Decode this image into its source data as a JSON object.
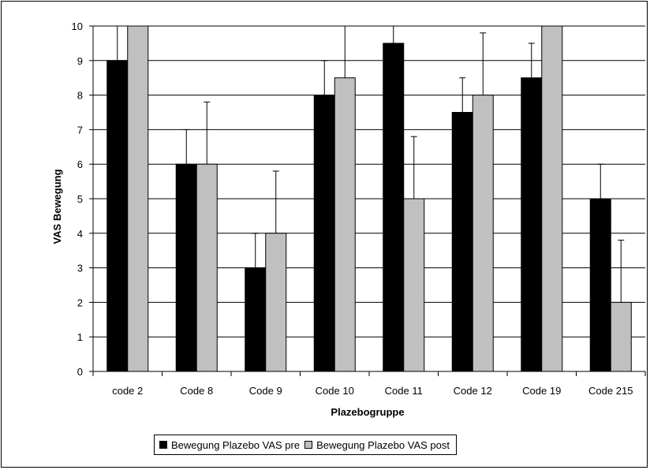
{
  "chart_data": {
    "type": "bar",
    "categories": [
      "code 2",
      "Code 8",
      "Code 9",
      "Code 10",
      "Code 11",
      "Code 12",
      "Code 19",
      "Code 215"
    ],
    "series": [
      {
        "name": "Bewegung Plazebo VAS pre",
        "color": "#000000",
        "values": [
          9,
          6,
          3,
          8,
          9.5,
          7.5,
          8.5,
          5
        ],
        "error_plus": [
          1,
          1,
          1,
          1,
          0.5,
          1,
          1,
          1
        ]
      },
      {
        "name": "Bewegung Plazebo VAS post",
        "color": "#c0c0c0",
        "values": [
          10,
          6,
          4,
          8.5,
          5,
          8,
          10,
          2
        ],
        "error_plus": [
          0,
          1.8,
          1.8,
          1.5,
          1.8,
          1.8,
          0,
          1.8
        ]
      }
    ],
    "xlabel": "Plazebogruppe",
    "ylabel": "VAS Bewegung",
    "ylim": [
      0,
      10
    ],
    "yticks": [
      0,
      1,
      2,
      3,
      4,
      5,
      6,
      7,
      8,
      9,
      10
    ],
    "grid": "horizontal",
    "legend_position": "bottom"
  }
}
